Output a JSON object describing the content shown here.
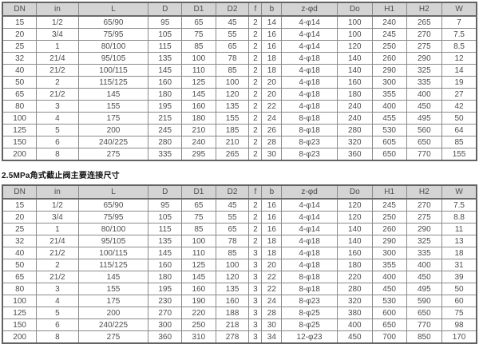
{
  "columns": [
    "DN",
    "in",
    "L",
    "D",
    "D1",
    "D2",
    "f",
    "b",
    "z-φd",
    "Do",
    "H1",
    "H2",
    "W"
  ],
  "tables": [
    {
      "title": "",
      "rows": [
        [
          "15",
          "1/2",
          "65/90",
          "95",
          "65",
          "45",
          "2",
          "14",
          "4-φ14",
          "100",
          "240",
          "265",
          "7"
        ],
        [
          "20",
          "3/4",
          "75/95",
          "105",
          "75",
          "55",
          "2",
          "16",
          "4-φ14",
          "100",
          "245",
          "270",
          "7.5"
        ],
        [
          "25",
          "1",
          "80/100",
          "115",
          "85",
          "65",
          "2",
          "16",
          "4-φ14",
          "120",
          "250",
          "275",
          "8.5"
        ],
        [
          "32",
          "21/4",
          "95/105",
          "135",
          "100",
          "78",
          "2",
          "18",
          "4-φ18",
          "140",
          "260",
          "290",
          "12"
        ],
        [
          "40",
          "21/2",
          "100/115",
          "145",
          "110",
          "85",
          "2",
          "18",
          "4-φ18",
          "140",
          "290",
          "325",
          "14"
        ],
        [
          "50",
          "2",
          "115/125",
          "160",
          "125",
          "100",
          "2",
          "20",
          "4-φ18",
          "160",
          "300",
          "335",
          "19"
        ],
        [
          "65",
          "21/2",
          "145",
          "180",
          "145",
          "120",
          "2",
          "20",
          "4-φ18",
          "180",
          "355",
          "400",
          "27"
        ],
        [
          "80",
          "3",
          "155",
          "195",
          "160",
          "135",
          "2",
          "22",
          "4-φ18",
          "240",
          "400",
          "450",
          "42"
        ],
        [
          "100",
          "4",
          "175",
          "215",
          "180",
          "155",
          "2",
          "24",
          "8-φ18",
          "240",
          "455",
          "495",
          "50"
        ],
        [
          "125",
          "5",
          "200",
          "245",
          "210",
          "185",
          "2",
          "26",
          "8-φ18",
          "280",
          "530",
          "560",
          "64"
        ],
        [
          "150",
          "6",
          "240/225",
          "280",
          "240",
          "210",
          "2",
          "28",
          "8-φ23",
          "320",
          "605",
          "650",
          "85"
        ],
        [
          "200",
          "8",
          "275",
          "335",
          "295",
          "265",
          "2",
          "30",
          "8-φ23",
          "360",
          "650",
          "770",
          "155"
        ]
      ]
    },
    {
      "title": "2.5MPa角式截止阀主要连接尺寸",
      "rows": [
        [
          "15",
          "1/2",
          "65/90",
          "95",
          "65",
          "45",
          "2",
          "16",
          "4-φ14",
          "120",
          "245",
          "270",
          "7.5"
        ],
        [
          "20",
          "3/4",
          "75/95",
          "105",
          "75",
          "55",
          "2",
          "16",
          "4-φ14",
          "120",
          "250",
          "275",
          "8.8"
        ],
        [
          "25",
          "1",
          "80/100",
          "115",
          "85",
          "65",
          "2",
          "16",
          "4-φ14",
          "140",
          "260",
          "290",
          "11"
        ],
        [
          "32",
          "21/4",
          "95/105",
          "135",
          "100",
          "78",
          "2",
          "18",
          "4-φ18",
          "140",
          "290",
          "325",
          "13"
        ],
        [
          "40",
          "21/2",
          "100/115",
          "145",
          "110",
          "85",
          "3",
          "18",
          "4-φ18",
          "160",
          "300",
          "335",
          "18"
        ],
        [
          "50",
          "2",
          "115/125",
          "160",
          "125",
          "100",
          "3",
          "20",
          "4-φ18",
          "180",
          "355",
          "400",
          "31"
        ],
        [
          "65",
          "21/2",
          "145",
          "180",
          "145",
          "120",
          "3",
          "22",
          "8-φ18",
          "220",
          "400",
          "450",
          "39"
        ],
        [
          "80",
          "3",
          "155",
          "195",
          "160",
          "135",
          "3",
          "22",
          "8-φ18",
          "280",
          "450",
          "495",
          "50"
        ],
        [
          "100",
          "4",
          "175",
          "230",
          "190",
          "160",
          "3",
          "24",
          "8-φ23",
          "320",
          "530",
          "590",
          "60"
        ],
        [
          "125",
          "5",
          "200",
          "270",
          "220",
          "188",
          "3",
          "28",
          "8-φ25",
          "380",
          "600",
          "650",
          "75"
        ],
        [
          "150",
          "6",
          "240/225",
          "300",
          "250",
          "218",
          "3",
          "30",
          "8-φ25",
          "400",
          "650",
          "770",
          "98"
        ],
        [
          "200",
          "8",
          "275",
          "360",
          "310",
          "278",
          "3",
          "34",
          "12-φ23",
          "450",
          "700",
          "850",
          "170"
        ]
      ]
    }
  ]
}
